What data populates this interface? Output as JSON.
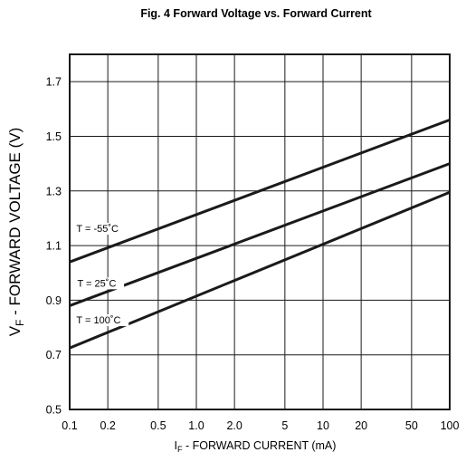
{
  "chart_data": {
    "type": "line",
    "title": "Fig. 4  Forward Voltage vs. Forward Current",
    "xlabel": {
      "main": "I",
      "sub": "F",
      "rest": " - FORWARD CURRENT (mA)"
    },
    "ylabel": {
      "main": "V",
      "sub": "F",
      "rest": " - FORWARD VOLTAGE (V)"
    },
    "x_scale": "log",
    "xlim": [
      0.1,
      100
    ],
    "ylim": [
      0.5,
      1.8
    ],
    "x_ticks": [
      {
        "value": 0.1,
        "label": "0.1"
      },
      {
        "value": 0.2,
        "label": "0.2"
      },
      {
        "value": 0.5,
        "label": "0.5"
      },
      {
        "value": 1,
        "label": "1.0"
      },
      {
        "value": 2,
        "label": "2.0"
      },
      {
        "value": 5,
        "label": "5"
      },
      {
        "value": 10,
        "label": "10"
      },
      {
        "value": 20,
        "label": "20"
      },
      {
        "value": 50,
        "label": "50"
      },
      {
        "value": 100,
        "label": "100"
      }
    ],
    "y_ticks": [
      {
        "value": 0.5,
        "label": "0.5"
      },
      {
        "value": 0.7,
        "label": "0.7"
      },
      {
        "value": 0.9,
        "label": "0.9"
      },
      {
        "value": 1.1,
        "label": "1.1"
      },
      {
        "value": 1.3,
        "label": "1.3"
      },
      {
        "value": 1.5,
        "label": "1.5"
      },
      {
        "value": 1.7,
        "label": "1.7"
      }
    ],
    "grid": true,
    "series": [
      {
        "name": "T = -55˚C",
        "x": [
          0.1,
          100
        ],
        "y": [
          1.04,
          1.56
        ],
        "label_at": [
          0.113,
          1.15
        ]
      },
      {
        "name": "T = 25˚C",
        "x": [
          0.1,
          100
        ],
        "y": [
          0.88,
          1.4
        ],
        "label_at": [
          0.115,
          0.95
        ]
      },
      {
        "name": "T = 100˚C",
        "x": [
          0.1,
          100
        ],
        "y": [
          0.725,
          1.295
        ],
        "label_at": [
          0.113,
          0.815
        ]
      }
    ],
    "colors": {
      "line": "#1a1a1a",
      "grid": "#1a1a1a",
      "background": "#ffffff"
    }
  }
}
